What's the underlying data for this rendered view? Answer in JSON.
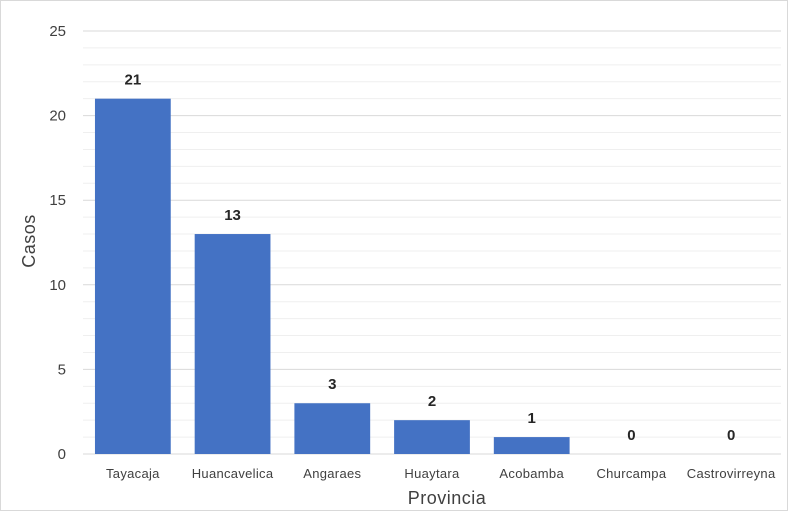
{
  "chart_data": {
    "type": "bar",
    "title": "",
    "xlabel": "Provincia",
    "ylabel": "Casos",
    "ylim": [
      0,
      25
    ],
    "yticks": [
      "0",
      "5",
      "10",
      "15",
      "20",
      "25"
    ],
    "grid": true,
    "legend": "none",
    "categories": [
      "Tayacaja",
      "Huancavelica",
      "Angaraes",
      "Huaytara",
      "Acobamba",
      "Churcampa",
      "Castrovirreyna"
    ],
    "values": [
      21,
      13,
      3,
      2,
      1,
      0,
      0
    ],
    "data_labels": [
      "21",
      "13",
      "3",
      "2",
      "1",
      "0",
      "0"
    ],
    "colors": {
      "bar": "#4472C4",
      "major_grid": "#d9d9d9",
      "minor_grid": "#efefef"
    }
  }
}
